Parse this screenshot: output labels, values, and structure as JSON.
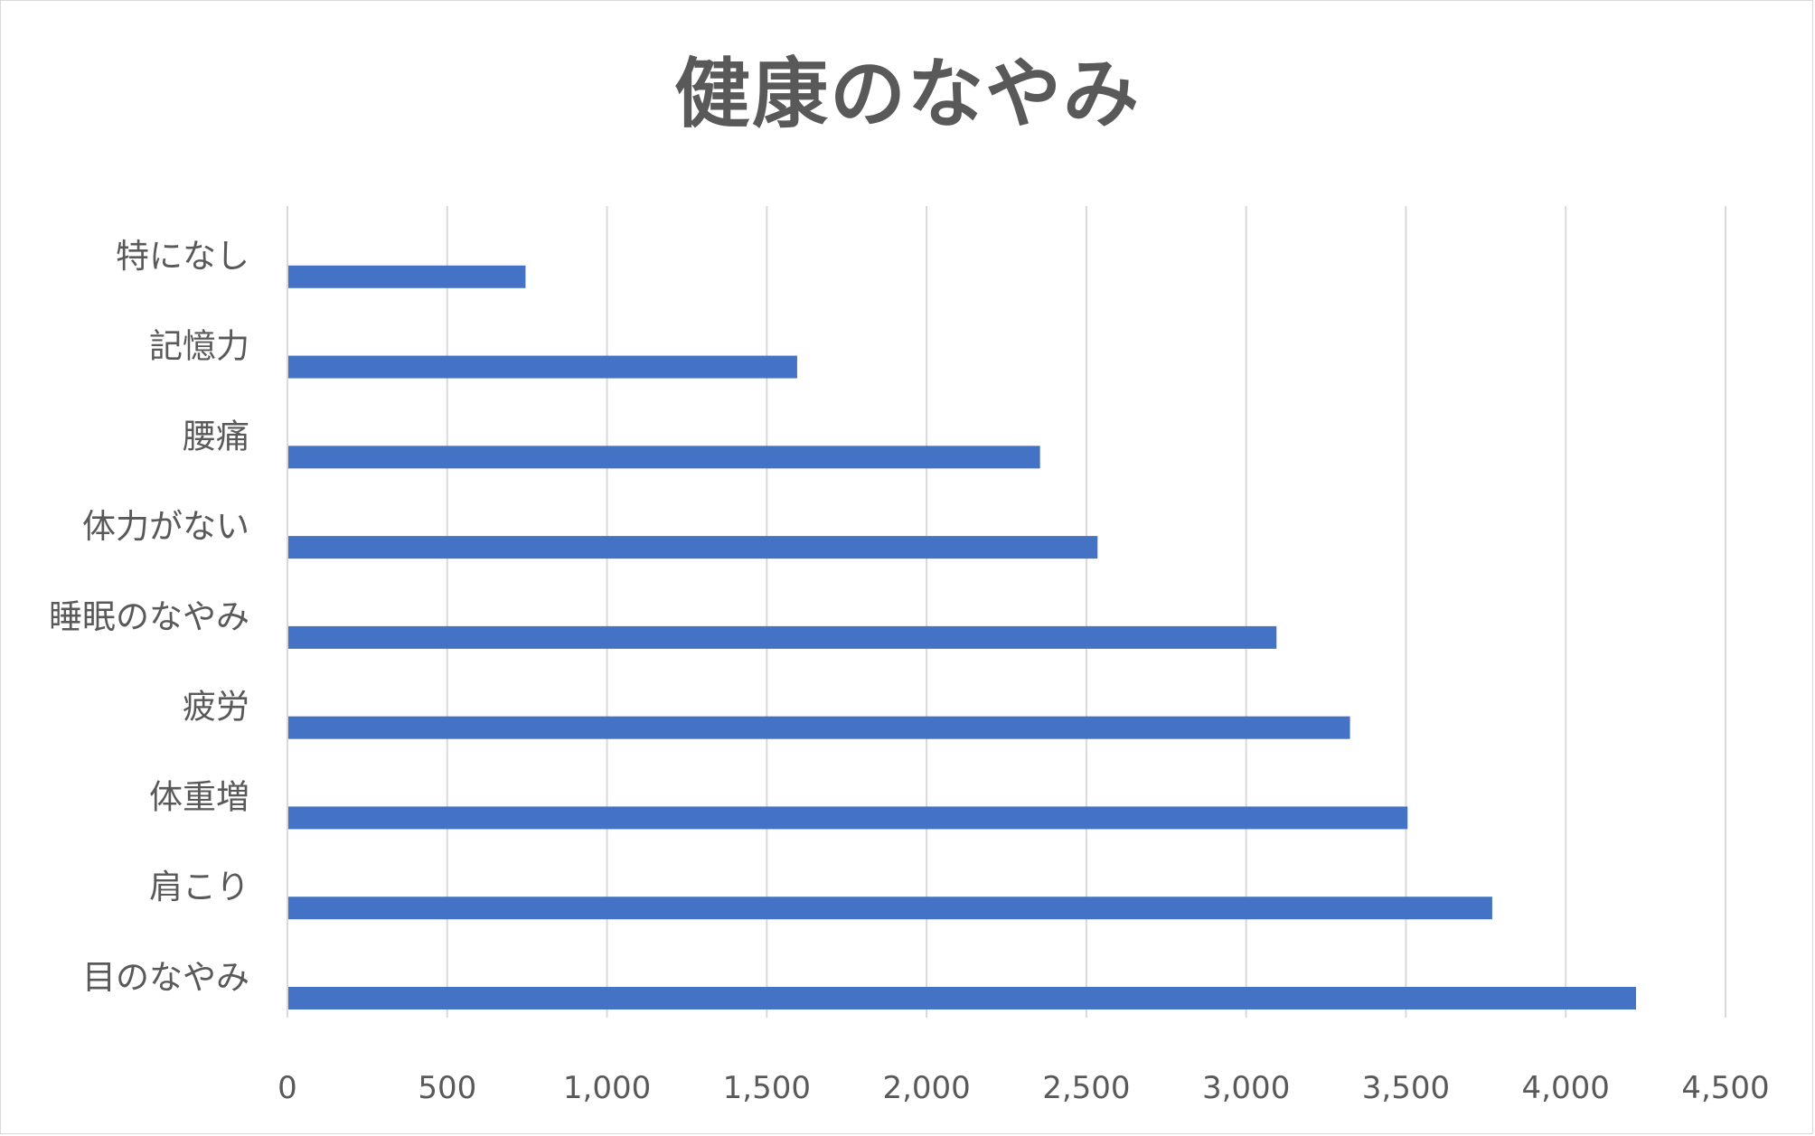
{
  "chart_data": {
    "type": "bar",
    "orientation": "horizontal",
    "title": "健康のなやみ",
    "xlabel": "",
    "ylabel": "",
    "categories": [
      "目のなやみ",
      "肩こり",
      "体重増",
      "疲労",
      "睡眠のなやみ",
      "体力がない",
      "腰痛",
      "記憶力",
      "特になし"
    ],
    "values": [
      4220,
      3770,
      3505,
      3325,
      3095,
      2535,
      2355,
      1595,
      745
    ],
    "xlim": [
      0,
      4500
    ],
    "ticks": [
      "0",
      "500",
      "1,000",
      "1,500",
      "2,000",
      "2,500",
      "3,000",
      "3,500",
      "4,000",
      "4,500"
    ],
    "tick_values": [
      0,
      500,
      1000,
      1500,
      2000,
      2500,
      3000,
      3500,
      4000,
      4500
    ],
    "grid": true,
    "legend": "none",
    "colors": {
      "bar": "#4472C4",
      "grid": "#d9d9d9",
      "text": "#595959",
      "axis": "#d9d9d9"
    }
  }
}
